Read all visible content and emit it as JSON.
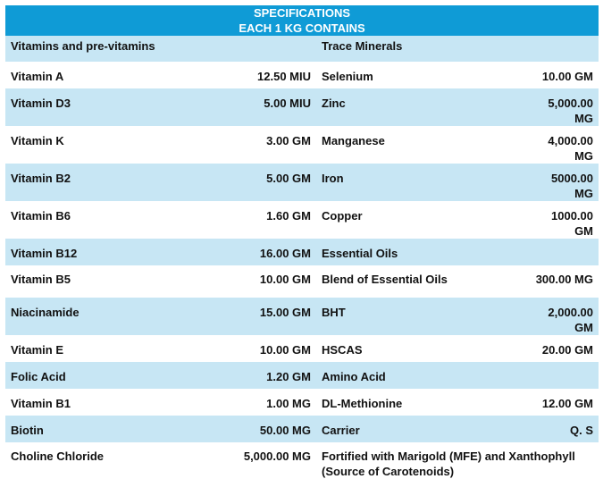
{
  "header": {
    "line1": "SPECIFICATIONS",
    "line2": "EACH 1 KG CONTAINS"
  },
  "sections": {
    "left": "Vitamins and pre-vitamins",
    "right": "Trace Minerals"
  },
  "rows": [
    {
      "l_name": "Vitamin A",
      "l_val": "12.50 MIU",
      "r_name": "Selenium",
      "r_val": "10.00 GM"
    },
    {
      "l_name": "Vitamin D3",
      "l_val": "5.00 MIU",
      "r_name": "Zinc",
      "r_val": "5,000.00 MG"
    },
    {
      "l_name": "Vitamin K",
      "l_val": "3.00 GM",
      "r_name": "Manganese",
      "r_val": "4,000.00 MG"
    },
    {
      "l_name": "Vitamin B2",
      "l_val": "5.00 GM",
      "r_name": "Iron",
      "r_val": "5000.00 MG"
    },
    {
      "l_name": "Vitamin B6",
      "l_val": "1.60 GM",
      "r_name": "Copper",
      "r_val": "1000.00 GM"
    },
    {
      "l_name": "Vitamin B12",
      "l_val": "16.00 GM",
      "r_name": "Essential Oils",
      "r_val": ""
    },
    {
      "l_name": "Vitamin B5",
      "l_val": "10.00 GM",
      "r_name": "Blend of Essential Oils",
      "r_val": "300.00 MG"
    },
    {
      "l_name": "Niacinamide",
      "l_val": "15.00 GM",
      "r_name": "BHT",
      "r_val": "2,000.00 GM"
    },
    {
      "l_name": "Vitamin E",
      "l_val": "10.00 GM",
      "r_name": "HSCAS",
      "r_val": "20.00 GM"
    },
    {
      "l_name": "Folic Acid",
      "l_val": "1.20 GM",
      "r_name": "Amino Acid",
      "r_val": ""
    },
    {
      "l_name": "Vitamin B1",
      "l_val": "1.00 MG",
      "r_name": "DL-Methionine",
      "r_val": "12.00 GM"
    },
    {
      "l_name": "Biotin",
      "l_val": "50.00 MG",
      "r_name": "Carrier",
      "r_val": "Q. S"
    },
    {
      "l_name": "Choline Chloride",
      "l_val": "5,000.00 MG",
      "r_name": "Fortified with Marigold (MFE) and Xanthophyll (Source of Carotenoids)",
      "r_val": ""
    }
  ],
  "colors": {
    "header": "#0f9bd6",
    "band": "#c7e6f4"
  }
}
